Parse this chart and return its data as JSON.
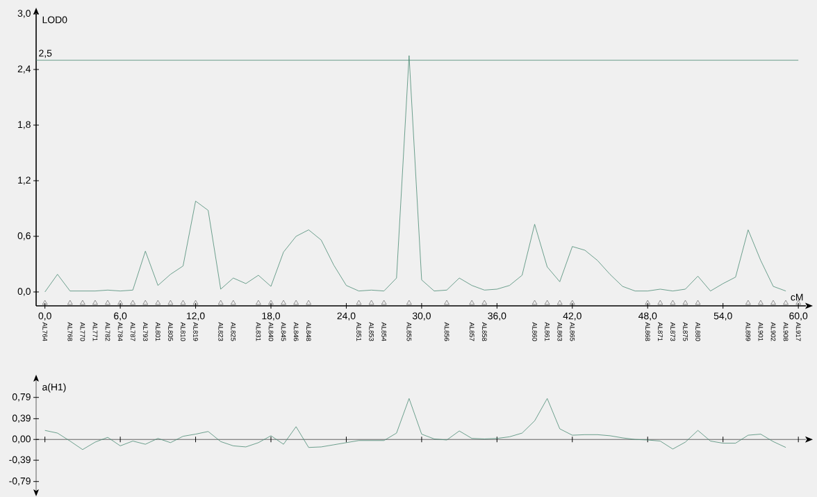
{
  "chart_data": [
    {
      "type": "line",
      "xlabel": "cM",
      "ylabel": "LOD0",
      "xlim": [
        -0.7,
        60.6
      ],
      "ylim": [
        -0.15,
        3.0
      ],
      "xticks": [
        {
          "value": 0,
          "label": "0,0"
        },
        {
          "value": 6,
          "label": "6,0"
        },
        {
          "value": 12,
          "label": "12,0"
        },
        {
          "value": 18,
          "label": "18,0"
        },
        {
          "value": 24,
          "label": "24,0"
        },
        {
          "value": 30,
          "label": "30,0"
        },
        {
          "value": 36,
          "label": "36,0"
        },
        {
          "value": 42,
          "label": "42,0"
        },
        {
          "value": 48,
          "label": "48,0"
        },
        {
          "value": 54,
          "label": "54,0"
        },
        {
          "value": 60,
          "label": "60,0"
        }
      ],
      "yticks": [
        {
          "value": 0,
          "label": "0,0"
        },
        {
          "value": 0.6,
          "label": "0,6"
        },
        {
          "value": 1.2,
          "label": "1,2"
        },
        {
          "value": 1.8,
          "label": "1,8"
        },
        {
          "value": 2.4,
          "label": "2,4"
        },
        {
          "value": 3.0,
          "label": "3,0"
        }
      ],
      "ref_lines": [
        {
          "axis": "y",
          "value": 2.5,
          "label": "2,5",
          "color": "#4a8a74"
        }
      ],
      "series": [
        {
          "color": "#4a8a74",
          "x": [
            0,
            1,
            2,
            3,
            4,
            5,
            6,
            7,
            8,
            9,
            10,
            11,
            12,
            13,
            14,
            15,
            16,
            17,
            18,
            19,
            20,
            21,
            22,
            23,
            24,
            25,
            26,
            27,
            28,
            29,
            30,
            31,
            32,
            33,
            34,
            35,
            36,
            37,
            38,
            39,
            40,
            41,
            42,
            43,
            44,
            45,
            46,
            47,
            48,
            49,
            50,
            51,
            52,
            53,
            54,
            55,
            56,
            57,
            58,
            59
          ],
          "values": [
            0.0,
            0.19,
            0.01,
            0.01,
            0.01,
            0.02,
            0.01,
            0.02,
            0.44,
            0.07,
            0.19,
            0.28,
            0.98,
            0.88,
            0.03,
            0.15,
            0.09,
            0.18,
            0.06,
            0.43,
            0.6,
            0.67,
            0.56,
            0.29,
            0.07,
            0.01,
            0.02,
            0.01,
            0.15,
            2.55,
            0.13,
            0.01,
            0.02,
            0.15,
            0.07,
            0.02,
            0.03,
            0.07,
            0.18,
            0.73,
            0.27,
            0.11,
            0.49,
            0.45,
            0.34,
            0.19,
            0.06,
            0.01,
            0.01,
            0.03,
            0.01,
            0.03,
            0.17,
            0.01,
            0.09,
            0.16,
            0.67,
            0.34,
            0.06,
            0.01
          ]
        },
        {
          "type": "scatter",
          "marker": "triangle",
          "color": "#505050",
          "x": [
            0,
            2,
            3,
            4,
            5,
            6,
            7,
            8,
            9,
            10,
            11,
            12,
            14,
            15,
            17,
            18,
            19,
            20,
            21,
            25,
            26,
            27,
            29,
            32,
            34,
            35,
            39,
            40,
            41,
            42,
            48,
            49,
            50,
            51,
            52,
            56,
            57,
            58,
            59,
            60
          ],
          "values": [
            -0.12,
            -0.12,
            -0.12,
            -0.12,
            -0.12,
            -0.12,
            -0.12,
            -0.12,
            -0.12,
            -0.12,
            -0.12,
            -0.12,
            -0.12,
            -0.12,
            -0.12,
            -0.12,
            -0.12,
            -0.12,
            -0.12,
            -0.12,
            -0.12,
            -0.12,
            -0.12,
            -0.12,
            -0.12,
            -0.12,
            -0.12,
            -0.12,
            -0.12,
            -0.12,
            -0.12,
            -0.12,
            -0.12,
            -0.12,
            -0.12,
            -0.12,
            -0.12,
            -0.12,
            -0.12,
            -0.12
          ],
          "value_labels": [
            "AL764",
            "AL768",
            "AL770",
            "AL771",
            "AL782",
            "AL784",
            "AL787",
            "AL793",
            "AL801",
            "AL805",
            "AL810",
            "AL819",
            "AL823",
            "AL825",
            "AL831",
            "AL840",
            "AL845",
            "AL846",
            "AL848",
            "AL851",
            "AL853",
            "AL854",
            "AL855",
            "AL856",
            "AL857",
            "AL858",
            "AL860",
            "AL861",
            "AL863",
            "AL865",
            "AL868",
            "AL871",
            "AL873",
            "AL875",
            "AL880",
            "AL899",
            "AL901",
            "AL902",
            "AL908",
            "AL917"
          ]
        }
      ]
    },
    {
      "type": "line",
      "ylabel": "a(H1)",
      "tick_labels": "y",
      "xlim": [
        -0.7,
        60.6
      ],
      "ylim": [
        -0.95,
        1.1
      ],
      "xticks": [
        0,
        6,
        12,
        18,
        24,
        30,
        36,
        42,
        48,
        54,
        60
      ],
      "yticks": [
        {
          "value": 0.79,
          "label": "0,79"
        },
        {
          "value": 0.39,
          "label": "0,39"
        },
        {
          "value": 0,
          "label": "0,00"
        },
        {
          "value": -0.39,
          "label": "-0,39"
        },
        {
          "value": -0.79,
          "label": "-0,79"
        }
      ],
      "series": [
        {
          "color": "#4a8a74",
          "x": [
            0,
            1,
            2,
            3,
            4,
            5,
            6,
            7,
            8,
            9,
            10,
            11,
            12,
            13,
            14,
            15,
            16,
            17,
            18,
            19,
            20,
            21,
            22,
            23,
            24,
            25,
            26,
            27,
            28,
            29,
            30,
            31,
            32,
            33,
            34,
            35,
            36,
            37,
            38,
            39,
            40,
            41,
            42,
            43,
            44,
            45,
            46,
            47,
            48,
            49,
            50,
            51,
            52,
            53,
            54,
            55,
            56,
            57,
            58,
            59
          ],
          "values": [
            0.17,
            0.12,
            -0.03,
            -0.19,
            -0.05,
            0.04,
            -0.12,
            -0.03,
            -0.09,
            0.02,
            -0.06,
            0.06,
            0.1,
            0.15,
            -0.04,
            -0.12,
            -0.14,
            -0.06,
            0.07,
            -0.09,
            0.24,
            -0.15,
            -0.14,
            -0.1,
            -0.06,
            -0.02,
            -0.02,
            -0.02,
            0.12,
            0.77,
            0.1,
            0.01,
            -0.01,
            0.16,
            0.02,
            0.01,
            0.02,
            0.05,
            0.12,
            0.35,
            0.77,
            0.2,
            0.08,
            0.09,
            0.09,
            0.07,
            0.03,
            0.0,
            -0.01,
            -0.03,
            -0.18,
            -0.05,
            0.17,
            -0.03,
            -0.07,
            -0.07,
            0.08,
            0.1,
            -0.04,
            -0.15
          ]
        }
      ]
    }
  ]
}
